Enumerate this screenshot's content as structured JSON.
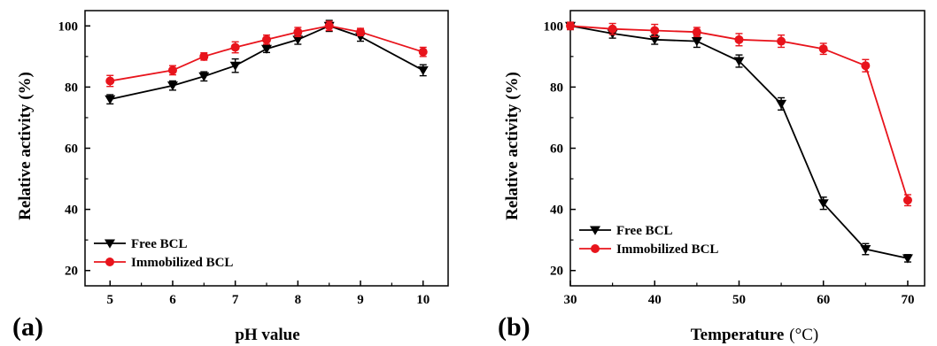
{
  "chart_data": [
    {
      "panel_label": "(a)",
      "type": "line",
      "xlabel": "pH value",
      "ylabel": "Relative activity (%)",
      "xlim": [
        4.6,
        10.4
      ],
      "ylim": [
        15,
        105
      ],
      "xticks": [
        5,
        6,
        7,
        8,
        9,
        10
      ],
      "yticks": [
        20,
        40,
        60,
        80,
        100
      ],
      "legend": "bottom-left",
      "grid": false,
      "series": [
        {
          "name": "Free BCL",
          "marker": "triangle-down",
          "color": "#000000",
          "x": [
            5,
            6,
            6.5,
            7,
            7.5,
            8,
            8.5,
            9,
            10
          ],
          "y": [
            76,
            80.5,
            83.5,
            87,
            92.5,
            95.5,
            100,
            96.5,
            85.5
          ],
          "err": [
            1.5,
            1.5,
            1.5,
            2.2,
            1.2,
            1.5,
            1.8,
            1.5,
            1.8
          ]
        },
        {
          "name": "Immobilized BCL",
          "marker": "circle",
          "color": "#e8141c",
          "x": [
            5,
            6,
            6.5,
            7,
            7.5,
            8,
            8.5,
            9,
            10
          ],
          "y": [
            82,
            85.5,
            90,
            93,
            95.5,
            98,
            100,
            98,
            91.5
          ],
          "err": [
            1.8,
            1.5,
            1.2,
            1.8,
            1.5,
            1.5,
            1.5,
            1.2,
            1.5
          ]
        }
      ]
    },
    {
      "panel_label": "(b)",
      "type": "line",
      "xlabel": "Temperature",
      "xunit": "(°C)",
      "ylabel": "Relative activity (%)",
      "xlim": [
        30,
        72
      ],
      "ylim": [
        15,
        105
      ],
      "xticks": [
        30,
        40,
        50,
        60,
        70
      ],
      "yticks": [
        20,
        40,
        60,
        80,
        100
      ],
      "legend": "bottom-left",
      "grid": false,
      "series": [
        {
          "name": "Free BCL",
          "marker": "triangle-down",
          "color": "#000000",
          "x": [
            30,
            35,
            40,
            45,
            50,
            55,
            60,
            65,
            70
          ],
          "y": [
            100,
            97.5,
            95.5,
            95,
            88.5,
            74.5,
            42,
            27,
            24
          ],
          "err": [
            1.2,
            1.5,
            1.5,
            2.0,
            2.0,
            2.0,
            2.0,
            1.8,
            1.2
          ]
        },
        {
          "name": "Immobilized BCL",
          "marker": "circle",
          "color": "#e8141c",
          "x": [
            30,
            35,
            40,
            45,
            50,
            55,
            60,
            65,
            70
          ],
          "y": [
            100,
            99,
            98.5,
            98,
            95.5,
            95,
            92.5,
            87,
            43
          ],
          "err": [
            1.2,
            1.8,
            2.0,
            1.5,
            2.0,
            2.0,
            1.8,
            2.0,
            1.8
          ]
        }
      ]
    }
  ]
}
